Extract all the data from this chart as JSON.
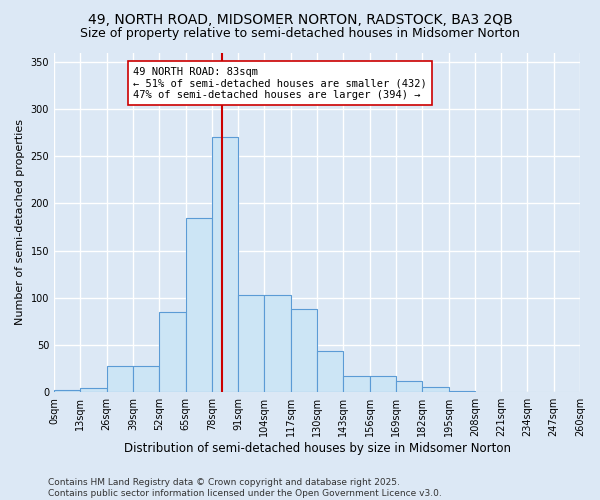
{
  "title1": "49, NORTH ROAD, MIDSOMER NORTON, RADSTOCK, BA3 2QB",
  "title2": "Size of property relative to semi-detached houses in Midsomer Norton",
  "xlabel": "Distribution of semi-detached houses by size in Midsomer Norton",
  "ylabel": "Number of semi-detached properties",
  "bin_edges": [
    0,
    13,
    26,
    39,
    52,
    65,
    78,
    91,
    104,
    117,
    130,
    143,
    156,
    169,
    182,
    195,
    208,
    221,
    234,
    247,
    260
  ],
  "bin_labels": [
    "0sqm",
    "13sqm",
    "26sqm",
    "39sqm",
    "52sqm",
    "65sqm",
    "78sqm",
    "91sqm",
    "104sqm",
    "117sqm",
    "130sqm",
    "143sqm",
    "156sqm",
    "169sqm",
    "182sqm",
    "195sqm",
    "208sqm",
    "221sqm",
    "234sqm",
    "247sqm",
    "260sqm"
  ],
  "counts": [
    2,
    4,
    28,
    28,
    85,
    185,
    270,
    103,
    103,
    88,
    44,
    17,
    17,
    12,
    5,
    1,
    0,
    0,
    0,
    0
  ],
  "bar_facecolor": "#cce5f5",
  "bar_edgecolor": "#5b9bd5",
  "property_sqm": 83,
  "property_line_color": "#cc0000",
  "annotation_text": "49 NORTH ROAD: 83sqm\n← 51% of semi-detached houses are smaller (432)\n47% of semi-detached houses are larger (394) →",
  "annotation_box_color": "#ffffff",
  "annotation_box_edgecolor": "#cc0000",
  "ylim": [
    0,
    360
  ],
  "yticks": [
    0,
    50,
    100,
    150,
    200,
    250,
    300,
    350
  ],
  "bg_color": "#dce8f5",
  "plot_bg_color": "#dce8f5",
  "grid_color": "#ffffff",
  "footer": "Contains HM Land Registry data © Crown copyright and database right 2025.\nContains public sector information licensed under the Open Government Licence v3.0.",
  "title1_fontsize": 10,
  "title2_fontsize": 9,
  "xlabel_fontsize": 8.5,
  "ylabel_fontsize": 8,
  "tick_fontsize": 7,
  "footer_fontsize": 6.5,
  "ann_fontsize": 7.5
}
